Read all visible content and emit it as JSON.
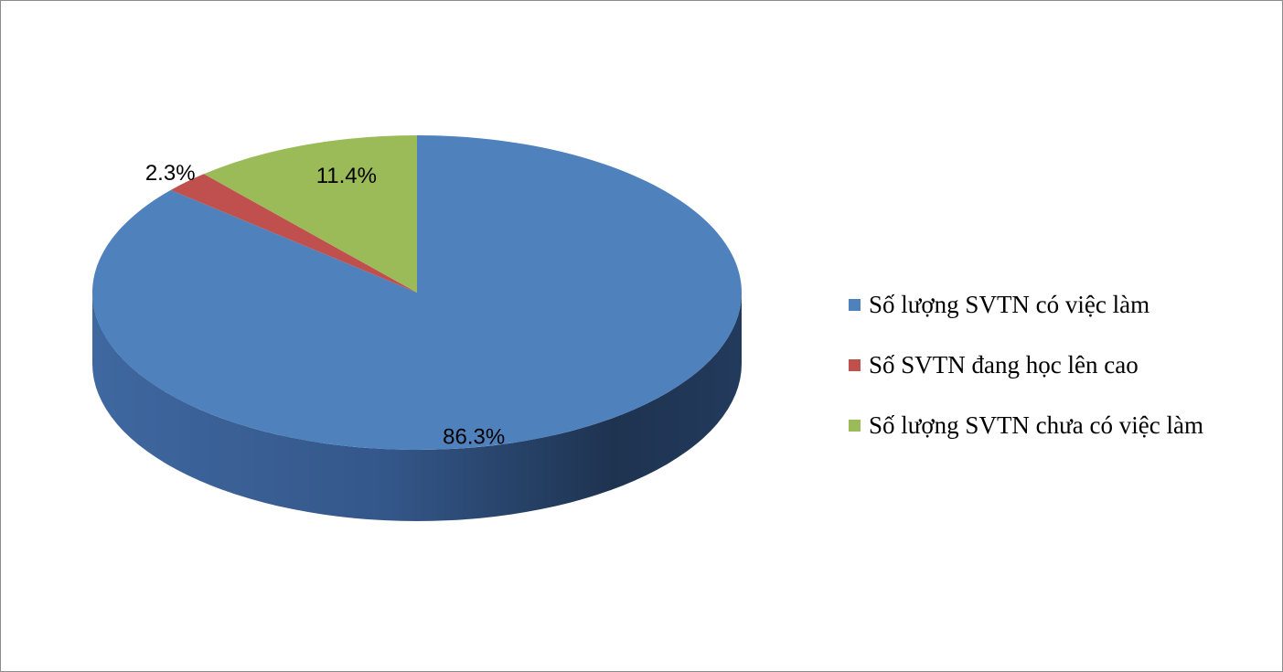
{
  "chart_data": {
    "type": "pie",
    "style": "3d",
    "start_angle_deg": 0,
    "direction": "clockwise",
    "legend_position": "right",
    "slices": [
      {
        "label": "Số lượng SVTN có việc làm",
        "value": 86.3,
        "display": "86.3%",
        "color": "#4f81bd"
      },
      {
        "label": "Số SVTN đang học lên cao",
        "value": 2.3,
        "display": "2.3%",
        "color": "#c0504d"
      },
      {
        "label": "Số lượng SVTN chưa có việc làm",
        "value": 11.4,
        "display": "11.4%",
        "color": "#9bbb59"
      }
    ]
  }
}
